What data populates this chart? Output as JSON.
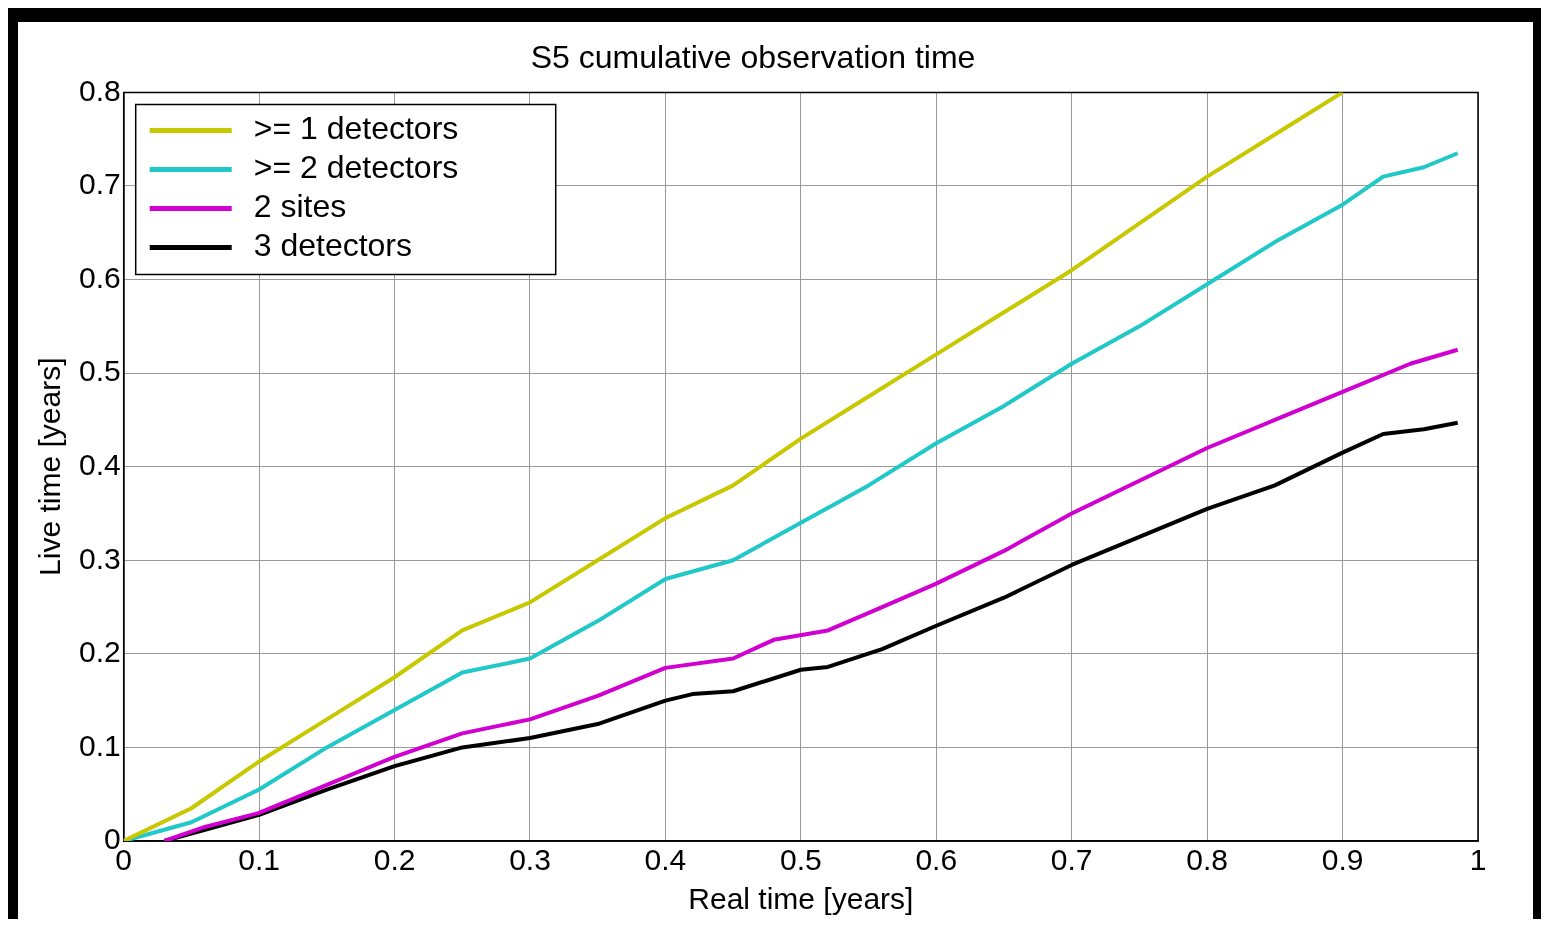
{
  "chart_data": {
    "type": "line",
    "title": "S5 cumulative observation time",
    "xlabel": "Real time [years]",
    "ylabel": "Live time [years]",
    "xlim": [
      0,
      1
    ],
    "xticks": [
      0,
      0.1,
      0.2,
      0.3,
      0.4,
      0.5,
      0.6,
      0.7,
      0.8,
      0.9,
      1
    ],
    "ylim": [
      0,
      0.8
    ],
    "yticks": [
      0,
      0.1,
      0.2,
      0.3,
      0.4,
      0.5,
      0.6,
      0.7,
      0.8
    ],
    "grid": true,
    "legend": "top left",
    "line_style": "solid",
    "marker": "none",
    "series": [
      {
        "name": ">= 1 detectors",
        "color": "#c8c800",
        "x": [
          0,
          0.05,
          0.1,
          0.15,
          0.2,
          0.25,
          0.3,
          0.35,
          0.4,
          0.45,
          0.5,
          0.55,
          0.6,
          0.65,
          0.7,
          0.75,
          0.8,
          0.85,
          0.9
        ],
        "values": [
          0,
          0.035,
          0.085,
          0.13,
          0.175,
          0.225,
          0.255,
          0.3,
          0.345,
          0.38,
          0.43,
          0.475,
          0.52,
          0.565,
          0.61,
          0.66,
          0.71,
          0.755,
          0.8
        ]
      },
      {
        "name": ">= 2 detectors",
        "color": "#20c8c8",
        "x": [
          0,
          0.05,
          0.1,
          0.15,
          0.2,
          0.25,
          0.3,
          0.35,
          0.4,
          0.45,
          0.5,
          0.55,
          0.6,
          0.65,
          0.7,
          0.75,
          0.8,
          0.85,
          0.9,
          0.93,
          0.96,
          0.985
        ],
        "values": [
          0,
          0.02,
          0.055,
          0.1,
          0.14,
          0.18,
          0.195,
          0.235,
          0.28,
          0.3,
          0.34,
          0.38,
          0.425,
          0.465,
          0.51,
          0.55,
          0.595,
          0.64,
          0.68,
          0.71,
          0.72,
          0.735
        ]
      },
      {
        "name": "2 sites",
        "color": "#d000d0",
        "x": [
          0.03,
          0.06,
          0.1,
          0.15,
          0.2,
          0.25,
          0.3,
          0.35,
          0.4,
          0.45,
          0.48,
          0.52,
          0.56,
          0.6,
          0.65,
          0.7,
          0.75,
          0.8,
          0.85,
          0.9,
          0.95,
          0.985
        ],
        "values": [
          0,
          0.015,
          0.03,
          0.06,
          0.09,
          0.115,
          0.13,
          0.155,
          0.185,
          0.195,
          0.215,
          0.225,
          0.25,
          0.275,
          0.31,
          0.35,
          0.385,
          0.42,
          0.45,
          0.48,
          0.51,
          0.525
        ]
      },
      {
        "name": "3 detectors",
        "color": "#000000",
        "x": [
          0.03,
          0.06,
          0.1,
          0.15,
          0.2,
          0.25,
          0.3,
          0.35,
          0.4,
          0.42,
          0.45,
          0.5,
          0.52,
          0.56,
          0.6,
          0.65,
          0.7,
          0.75,
          0.8,
          0.85,
          0.9,
          0.93,
          0.96,
          0.985
        ],
        "values": [
          0,
          0.012,
          0.028,
          0.055,
          0.08,
          0.1,
          0.11,
          0.125,
          0.15,
          0.157,
          0.16,
          0.183,
          0.186,
          0.205,
          0.23,
          0.26,
          0.295,
          0.325,
          0.355,
          0.38,
          0.415,
          0.435,
          0.44,
          0.447
        ]
      }
    ]
  }
}
